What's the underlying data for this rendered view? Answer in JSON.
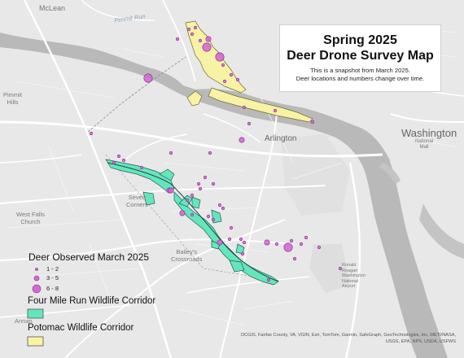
{
  "map_title": {
    "line1": "Spring 2025",
    "line2": "Deer Drone Survey Map",
    "note1": "This is a snapshot from March 2025.",
    "note2": "Deer locations and numbers change over time."
  },
  "places": {
    "mclean": "McLean",
    "pimmit1": "Pimmit",
    "pimmit2": "Hills",
    "arlington": "Arlington",
    "washington": "Washington",
    "nat_mall1": "National",
    "nat_mall2": "Mall",
    "seven1": "Seven",
    "seven2": "Corners",
    "wfc1": "West Falls",
    "wfc2": "Church",
    "bailey1": "Bailey's",
    "bailey2": "Crossroads",
    "annandale": "Annan",
    "airport1": "Ronald",
    "airport2": "Reagan",
    "airport3": "Washington",
    "airport4": "National",
    "airport5": "Airport",
    "pimmit_run": "Pimmit Run"
  },
  "legend": {
    "deer_title": "Deer Observed March 2025",
    "size_classes": [
      "1 - 2",
      "3 - 5",
      "6 - 8"
    ],
    "fmr_title": "Four Mile Run Wildlife Corridor",
    "potomac_title": "Potomac Wildlife Corridor"
  },
  "colors": {
    "deer_fill": "#d26ad3",
    "deer_stroke": "#8a2a8a",
    "four_mile_run": "#63e6be",
    "potomac": "#f7f2a6",
    "river": "#b8b8b8",
    "land": "#e8e8e8",
    "road": "#ffffff"
  },
  "attribution": {
    "line1": "DCGIS, Fairfax County, VA, VGIN, Esri, TomTom, Garmin, SafeGraph, GeoTechnologies, Inc, METI/NASA,",
    "line2": "USGS, EPA, NPS, USDA, USFWS"
  },
  "deer_points": [
    {
      "cls": 1
    },
    {
      "cls": 1
    },
    {
      "cls": 1
    },
    {
      "cls": 1
    },
    {
      "cls": 1
    },
    {
      "cls": 2
    },
    {
      "cls": 3
    },
    {
      "cls": 3
    },
    {
      "cls": 3
    },
    {
      "cls": 1
    },
    {
      "cls": 1
    },
    {
      "cls": 1
    },
    {
      "cls": 1
    },
    {
      "cls": 1
    },
    {
      "cls": 2
    },
    {
      "cls": 1
    },
    {
      "cls": 1
    },
    {
      "cls": 1
    },
    {
      "cls": 1
    },
    {
      "cls": 1
    },
    {
      "cls": 1
    },
    {
      "cls": 1
    },
    {
      "cls": 1
    },
    {
      "cls": 1
    },
    {
      "cls": 1
    },
    {
      "cls": 2
    },
    {
      "cls": 2
    },
    {
      "cls": 1
    },
    {
      "cls": 1
    },
    {
      "cls": 1
    },
    {
      "cls": 1
    },
    {
      "cls": 1
    },
    {
      "cls": 1
    },
    {
      "cls": 1
    },
    {
      "cls": 1
    },
    {
      "cls": 2
    },
    {
      "cls": 1
    },
    {
      "cls": 1
    },
    {
      "cls": 1
    },
    {
      "cls": 1
    },
    {
      "cls": 2
    },
    {
      "cls": 1
    },
    {
      "cls": 1
    },
    {
      "cls": 1
    },
    {
      "cls": 1
    },
    {
      "cls": 2
    },
    {
      "cls": 1
    },
    {
      "cls": 1
    },
    {
      "cls": 3
    },
    {
      "cls": 1
    },
    {
      "cls": 1
    },
    {
      "cls": 1
    },
    {
      "cls": 1
    },
    {
      "cls": 1
    },
    {
      "cls": 1
    }
  ]
}
